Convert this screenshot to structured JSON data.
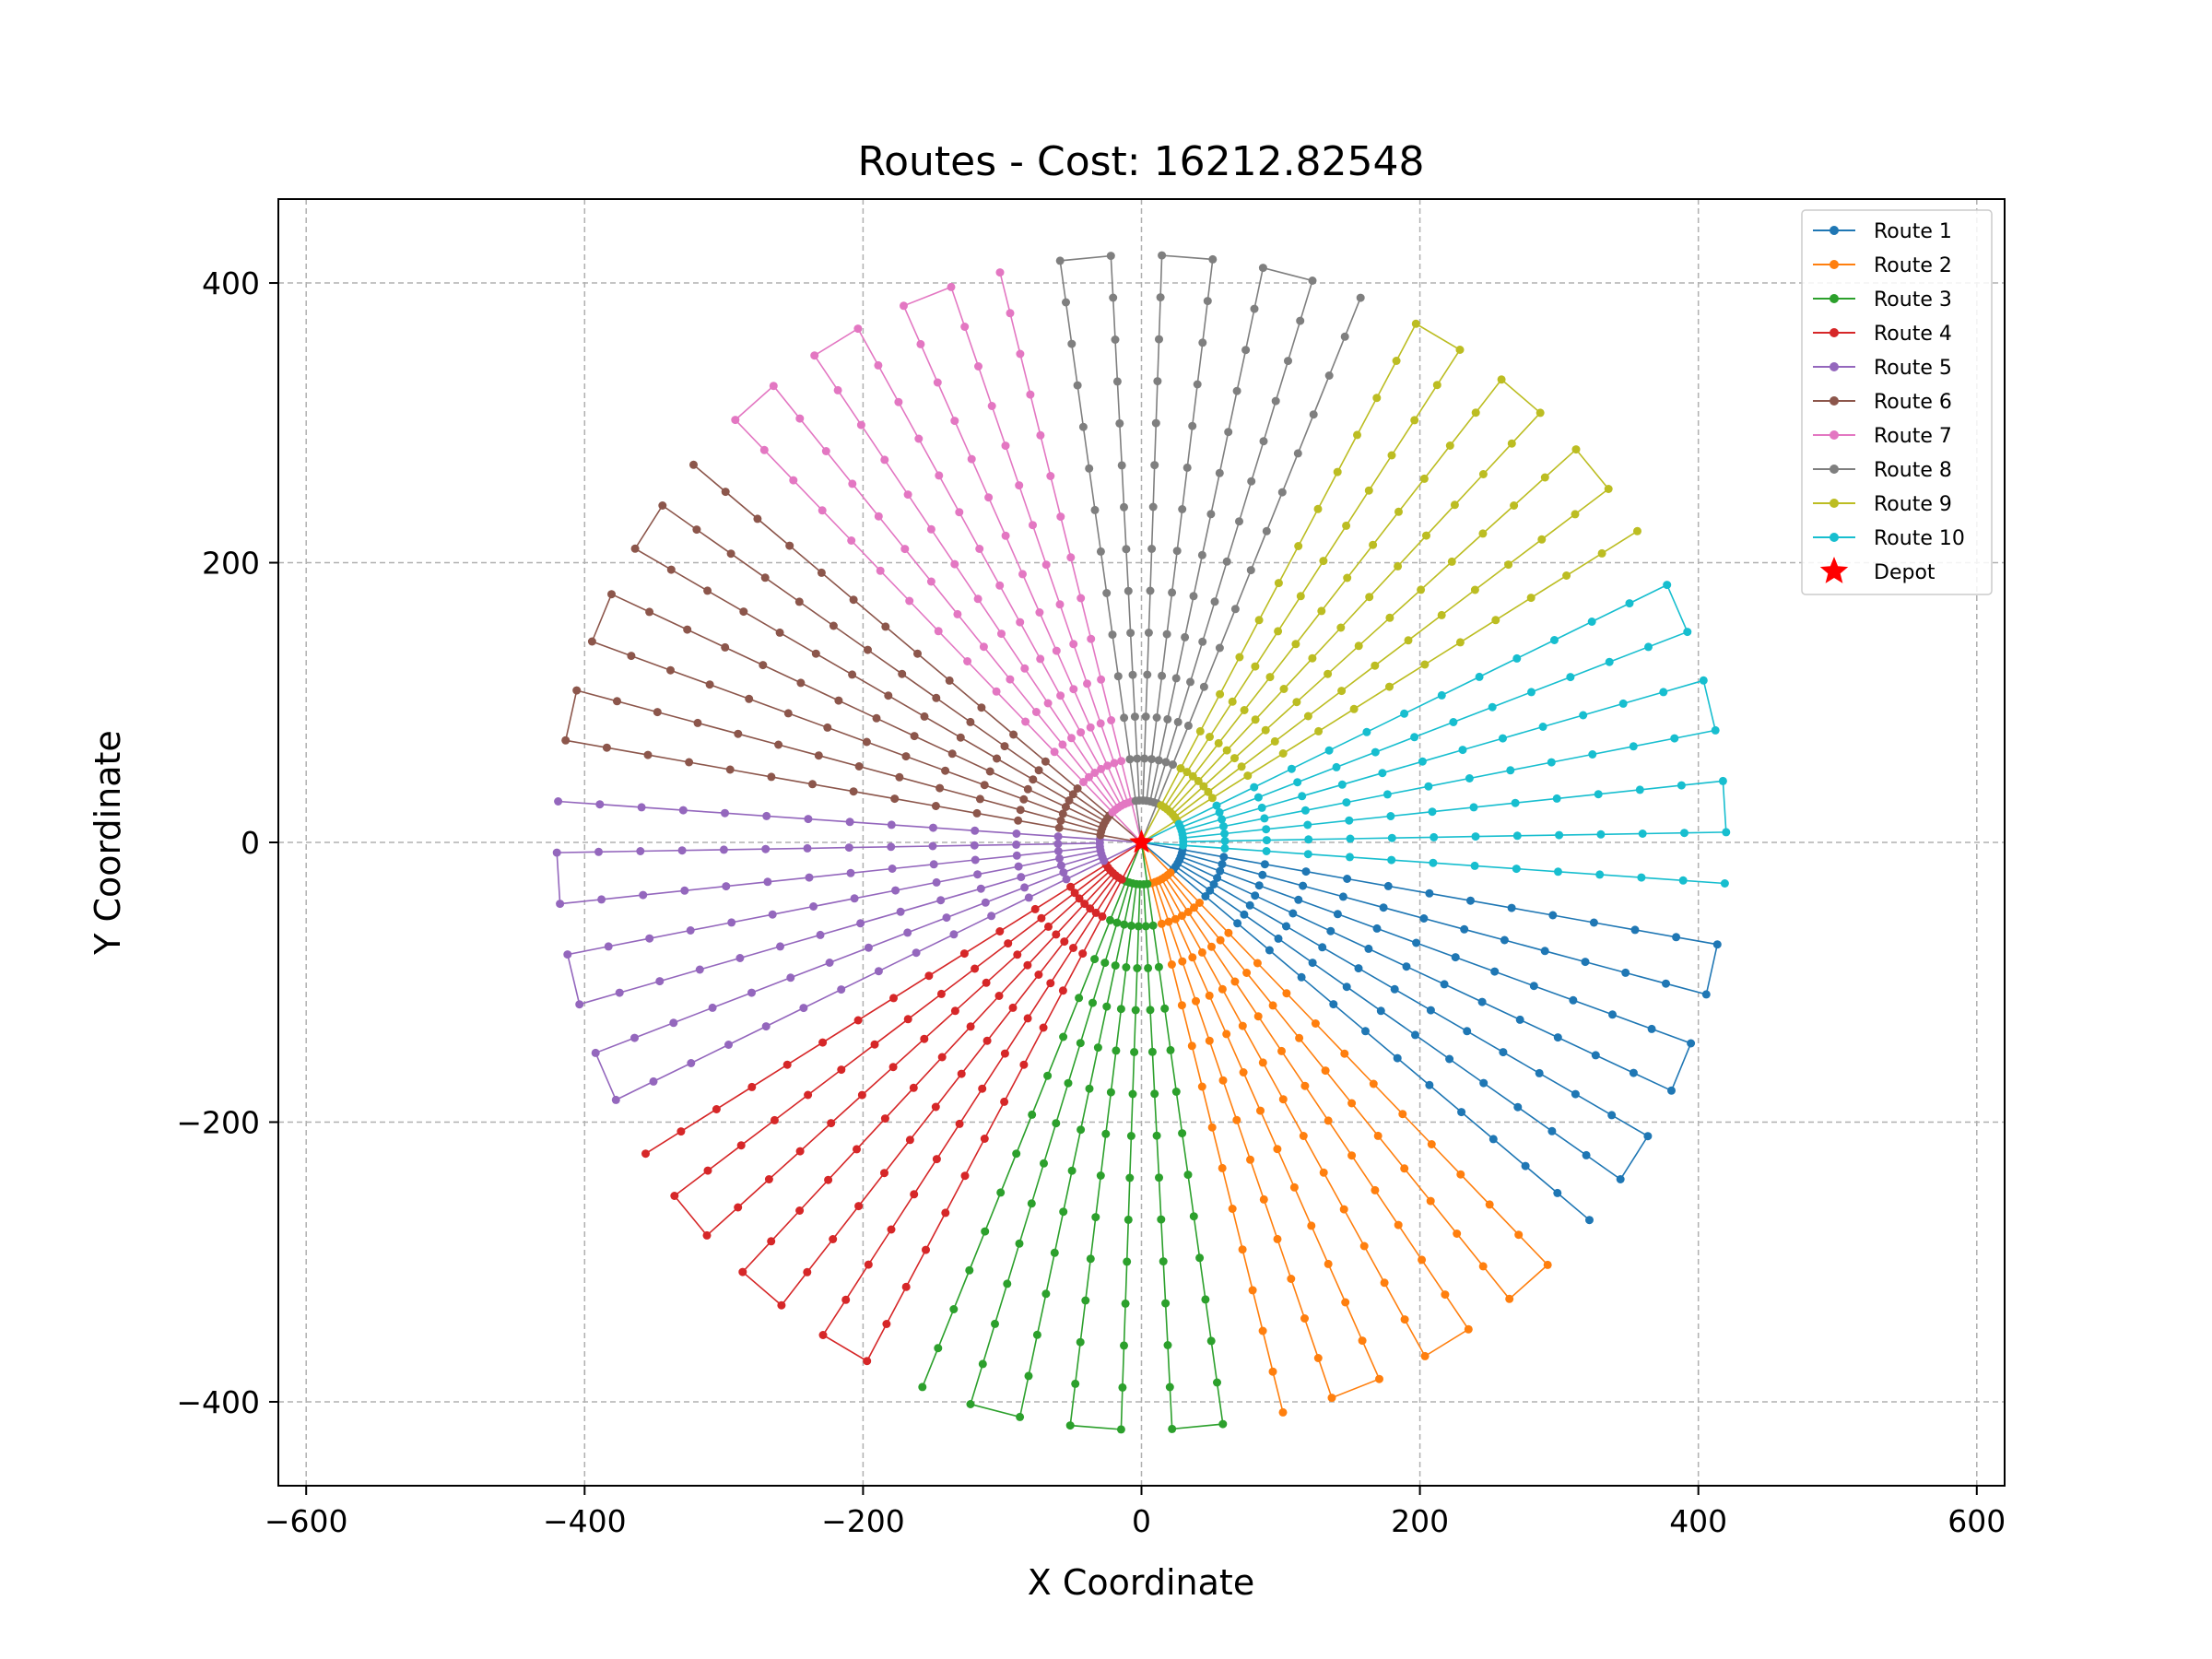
{
  "chart_data": {
    "type": "line",
    "title": "Routes - Cost: 16212.82548",
    "xlabel": "X Coordinate",
    "ylabel": "Y Coordinate",
    "xlim": [
      -620,
      620
    ],
    "ylim": [
      -460,
      460
    ],
    "xticks": [
      -600,
      -400,
      -200,
      0,
      200,
      400,
      600
    ],
    "yticks": [
      -400,
      -200,
      0,
      200,
      400
    ],
    "grid": true,
    "legend_position": "top-right",
    "depot": {
      "name": "Depot",
      "x": 0,
      "y": 0,
      "color": "#ff0000",
      "marker": "star"
    },
    "route_structure": {
      "pattern": "spokes radiating from the depot",
      "spokes": 72,
      "spoke_angle_step_deg": 5,
      "ring_radii": [
        30,
        60,
        90,
        120,
        150,
        180,
        210,
        240,
        270,
        300,
        330,
        360,
        390,
        420
      ],
      "routes_per_band": 10,
      "band_width_deg": 36,
      "band_start_angle_deg": -10
    },
    "series": [
      {
        "name": "Route 1",
        "color": "#1f77b4"
      },
      {
        "name": "Route 2",
        "color": "#ff7f0e"
      },
      {
        "name": "Route 3",
        "color": "#2ca02c"
      },
      {
        "name": "Route 4",
        "color": "#d62728"
      },
      {
        "name": "Route 5",
        "color": "#9467bd"
      },
      {
        "name": "Route 6",
        "color": "#8c564b"
      },
      {
        "name": "Route 7",
        "color": "#e377c2"
      },
      {
        "name": "Route 8",
        "color": "#7f7f7f"
      },
      {
        "name": "Route 9",
        "color": "#bcbd22"
      },
      {
        "name": "Route 10",
        "color": "#17becf"
      }
    ]
  }
}
